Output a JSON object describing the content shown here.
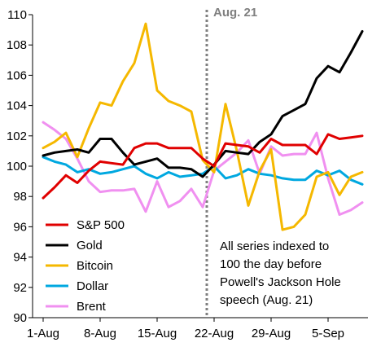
{
  "chart_data": {
    "type": "line",
    "title": "",
    "xlabel": "",
    "ylabel": "",
    "ylim": [
      90,
      110
    ],
    "y_ticks": [
      90,
      92,
      94,
      96,
      98,
      100,
      102,
      104,
      106,
      108,
      110
    ],
    "y_tick_labels": [
      "90",
      "92",
      "94",
      "96",
      "98",
      "100",
      "102",
      "104",
      "106",
      "108",
      "110"
    ],
    "x_tick_labels": [
      "1-Aug",
      "8-Aug",
      "15-Aug",
      "22-Aug",
      "29-Aug",
      "5-Sep"
    ],
    "x_tick_index": [
      0,
      5,
      10,
      15,
      20,
      25
    ],
    "grid": false,
    "legend_position": "bottom-left",
    "vertical_marker": {
      "index": 14,
      "label": "Aug. 21",
      "color": "#7f7f7f"
    },
    "annotation": {
      "lines": [
        "All series indexed to",
        "100 the day before",
        "Powell's Jackson Hole",
        "speech (Aug. 21)"
      ],
      "position": "bottom-right"
    },
    "series": [
      {
        "name": "S&P 500",
        "color": "#e00000",
        "values": [
          97.9,
          98.6,
          99.4,
          98.9,
          99.7,
          100.3,
          100.2,
          100.1,
          101.2,
          101.5,
          101.5,
          101.2,
          101.2,
          101.2,
          100.5,
          100.0,
          101.5,
          101.4,
          101.3,
          100.9,
          101.8,
          101.4,
          101.4,
          101.4,
          100.8,
          102.1,
          101.8,
          101.9,
          102.0
        ]
      },
      {
        "name": "Gold",
        "color": "#000000",
        "values": [
          100.7,
          100.9,
          101.0,
          101.1,
          100.9,
          101.8,
          101.8,
          100.9,
          100.1,
          100.3,
          100.5,
          99.9,
          99.9,
          99.8,
          99.3,
          100.1,
          101.0,
          100.9,
          100.8,
          101.6,
          102.1,
          103.3,
          103.7,
          104.1,
          105.8,
          106.6,
          106.2,
          107.5,
          108.9
        ]
      },
      {
        "name": "Bitcoin",
        "color": "#f5b800",
        "values": [
          101.2,
          101.6,
          102.2,
          100.6,
          102.5,
          104.2,
          104.0,
          105.6,
          106.8,
          109.4,
          105.0,
          104.3,
          104.0,
          103.6,
          100.4,
          99.6,
          104.1,
          101.0,
          97.4,
          99.7,
          101.1,
          95.8,
          96.0,
          96.8,
          99.3,
          99.6,
          98.1,
          99.3,
          99.6
        ]
      },
      {
        "name": "Dollar",
        "color": "#00a8e0",
        "values": [
          100.6,
          100.3,
          100.1,
          99.6,
          99.8,
          99.5,
          99.6,
          99.8,
          100.0,
          99.5,
          99.2,
          99.6,
          99.3,
          99.4,
          99.5,
          100.0,
          99.2,
          99.4,
          99.8,
          99.5,
          99.4,
          99.2,
          99.1,
          99.1,
          99.7,
          99.4,
          99.7,
          99.1,
          98.8
        ]
      },
      {
        "name": "Brent",
        "color": "#f090f0",
        "values": [
          102.9,
          102.4,
          101.8,
          100.5,
          99.0,
          98.3,
          98.4,
          98.4,
          98.5,
          97.0,
          99.0,
          97.3,
          97.7,
          98.5,
          97.3,
          99.7,
          100.3,
          100.9,
          101.7,
          99.5,
          101.3,
          100.7,
          100.8,
          100.8,
          102.2,
          99.2,
          96.8,
          97.1,
          97.6
        ]
      }
    ]
  }
}
